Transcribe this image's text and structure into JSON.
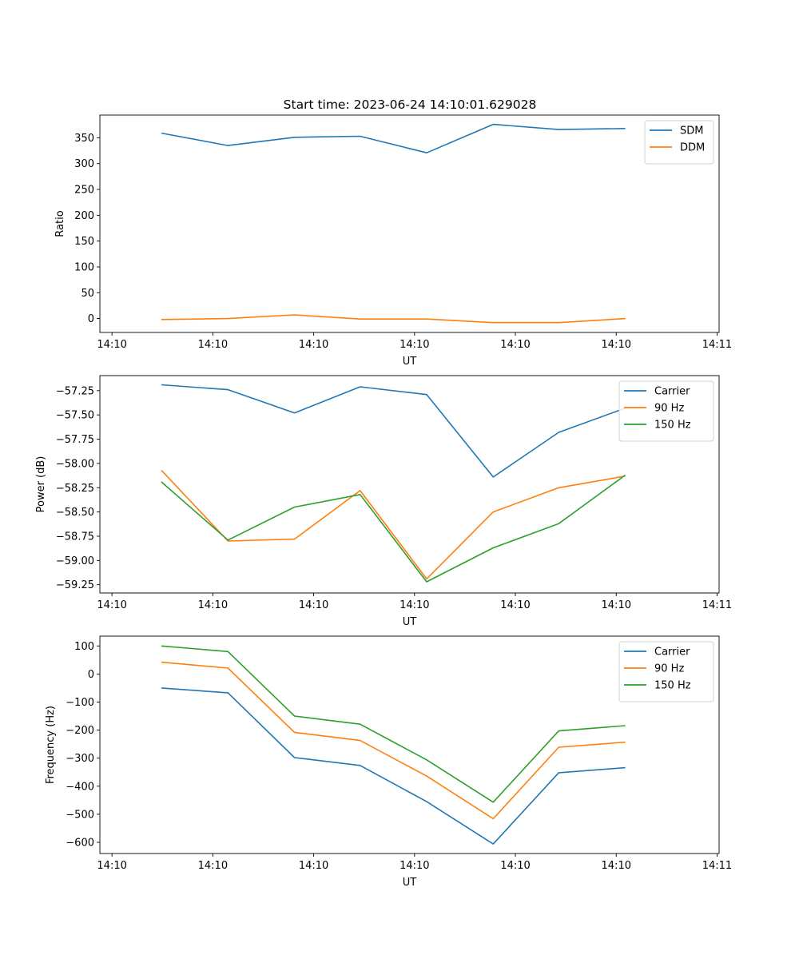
{
  "figure_title": "Start time: 2023-06-24 14:10:01.629028",
  "chart_data": [
    {
      "type": "line",
      "title": "Start time: 2023-06-24 14:10:01.629028",
      "xlabel": "UT",
      "ylabel": "Ratio",
      "x_tick_labels": [
        "14:10",
        "14:10",
        "14:10",
        "14:10",
        "14:10",
        "14:10",
        "14:11"
      ],
      "x_tick_positions": [
        0,
        10,
        20,
        30,
        40,
        50,
        60
      ],
      "xlim": [
        -1.2,
        60.2
      ],
      "ylim": [
        -27,
        394
      ],
      "y_ticks": [
        0,
        50,
        100,
        150,
        200,
        250,
        300,
        350
      ],
      "x": [
        4.9,
        11.5,
        18.1,
        24.6,
        31.2,
        37.8,
        44.3,
        50.9
      ],
      "series": [
        {
          "name": "SDM",
          "color": "#1f77b4",
          "values": [
            359,
            335,
            351,
            353,
            321,
            376,
            366,
            368
          ]
        },
        {
          "name": "DDM",
          "color": "#ff7f0e",
          "values": [
            -2,
            0,
            7,
            -1,
            -1,
            -8,
            -8,
            0
          ]
        }
      ],
      "legend_position": "upper-right",
      "grid": false
    },
    {
      "type": "line",
      "xlabel": "UT",
      "ylabel": "Power (dB)",
      "x_tick_labels": [
        "14:10",
        "14:10",
        "14:10",
        "14:10",
        "14:10",
        "14:10",
        "14:11"
      ],
      "x_tick_positions": [
        0,
        10,
        20,
        30,
        40,
        50,
        60
      ],
      "xlim": [
        -1.2,
        60.2
      ],
      "ylim": [
        -59.335,
        -57.095
      ],
      "y_ticks": [
        -59.25,
        -59.0,
        -58.75,
        -58.5,
        -58.25,
        -58.0,
        -57.75,
        -57.5,
        -57.25
      ],
      "x": [
        4.9,
        11.5,
        18.1,
        24.6,
        31.2,
        37.8,
        44.3,
        50.9
      ],
      "series": [
        {
          "name": "Carrier",
          "color": "#1f77b4",
          "values": [
            -57.19,
            -57.24,
            -57.48,
            -57.21,
            -57.29,
            -58.14,
            -57.68,
            -57.43
          ]
        },
        {
          "name": "90 Hz",
          "color": "#ff7f0e",
          "values": [
            -58.07,
            -58.8,
            -58.78,
            -58.28,
            -59.19,
            -58.5,
            -58.25,
            -58.13
          ]
        },
        {
          "name": "150 Hz",
          "color": "#2ca02c",
          "values": [
            -58.19,
            -58.79,
            -58.45,
            -58.32,
            -59.22,
            -58.87,
            -58.62,
            -58.12
          ]
        }
      ],
      "legend_position": "upper-right",
      "grid": false
    },
    {
      "type": "line",
      "xlabel": "UT",
      "ylabel": "Frequency (Hz)",
      "x_tick_labels": [
        "14:10",
        "14:10",
        "14:10",
        "14:10",
        "14:10",
        "14:10",
        "14:11"
      ],
      "x_tick_positions": [
        0,
        10,
        20,
        30,
        40,
        50,
        60
      ],
      "xlim": [
        -1.2,
        60.2
      ],
      "ylim": [
        -640,
        135
      ],
      "y_ticks": [
        -600,
        -500,
        -400,
        -300,
        -200,
        -100,
        0,
        100
      ],
      "x": [
        4.9,
        11.5,
        18.1,
        24.6,
        31.2,
        37.8,
        44.3,
        50.9
      ],
      "series": [
        {
          "name": "Carrier",
          "color": "#1f77b4",
          "values": [
            -50,
            -67,
            -298,
            -326,
            -455,
            -606,
            -352,
            -334
          ]
        },
        {
          "name": "90 Hz",
          "color": "#ff7f0e",
          "values": [
            42,
            21,
            -208,
            -237,
            -364,
            -516,
            -261,
            -243
          ]
        },
        {
          "name": "150 Hz",
          "color": "#2ca02c",
          "values": [
            100,
            80,
            -150,
            -179,
            -306,
            -457,
            -203,
            -184
          ]
        }
      ],
      "legend_position": "upper-right",
      "grid": false
    }
  ]
}
